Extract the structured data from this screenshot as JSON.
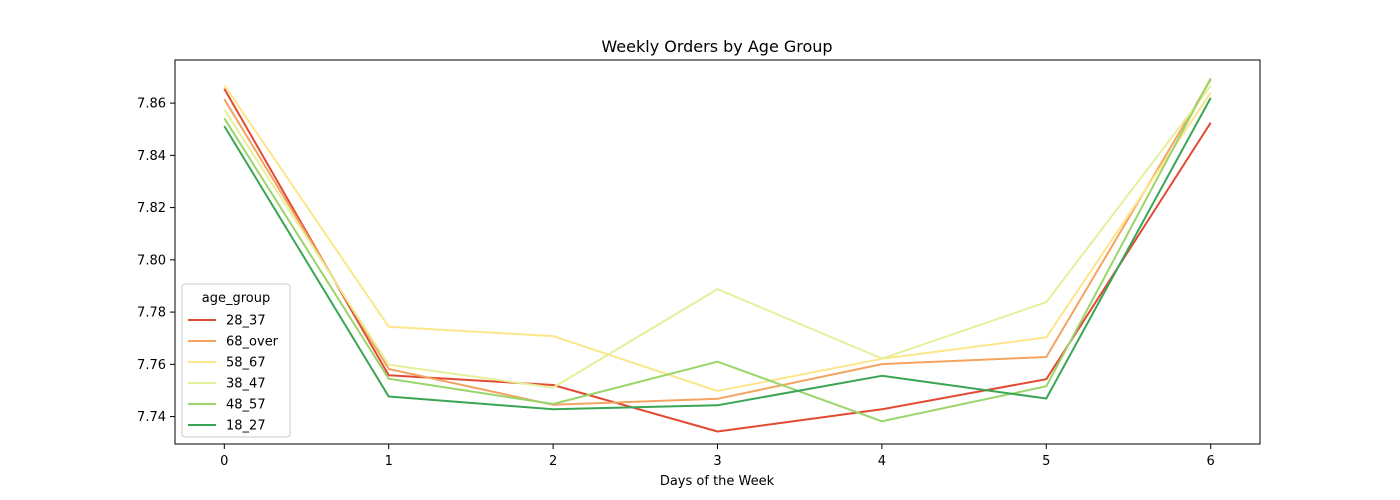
{
  "chart_data": {
    "type": "line",
    "title": "Weekly Orders by Age Group",
    "xlabel": "Days of the Week",
    "ylabel": "",
    "x": [
      0,
      1,
      2,
      3,
      4,
      5,
      6
    ],
    "x_ticks": [
      "0",
      "1",
      "2",
      "3",
      "4",
      "5",
      "6"
    ],
    "xlim": [
      -0.3,
      6.3
    ],
    "ylim": [
      7.7295,
      7.8765
    ],
    "y_ticks": [
      7.74,
      7.76,
      7.78,
      7.8,
      7.82,
      7.84,
      7.86
    ],
    "y_tick_labels": [
      "7.74",
      "7.76",
      "7.78",
      "7.80",
      "7.82",
      "7.84",
      "7.86"
    ],
    "grid": false,
    "legend": {
      "title": "age_group",
      "placement": "lower-left"
    },
    "series": [
      {
        "name": "28_37",
        "color": "#e34a33",
        "values": [
          7.8655,
          7.7558,
          7.7521,
          7.7343,
          7.7428,
          7.7543,
          7.8525
        ]
      },
      {
        "name": "68_over",
        "color": "#f4a460",
        "values": [
          7.8615,
          7.7582,
          7.7445,
          7.7468,
          7.7601,
          7.7628,
          7.869
        ]
      },
      {
        "name": "58_67",
        "color": "#fde68a",
        "values": [
          7.8668,
          7.7744,
          7.7708,
          7.7498,
          7.7621,
          7.7703,
          7.864
        ]
      },
      {
        "name": "38_47",
        "color": "#e6f09a",
        "values": [
          7.8575,
          7.7598,
          7.7511,
          7.7888,
          7.7622,
          7.7838,
          7.8665
        ]
      },
      {
        "name": "48_57",
        "color": "#9ad56a",
        "values": [
          7.8542,
          7.7545,
          7.7448,
          7.761,
          7.7382,
          7.7516,
          7.8695
        ]
      },
      {
        "name": "18_27",
        "color": "#3aa655",
        "values": [
          7.8512,
          7.7477,
          7.7428,
          7.7443,
          7.7556,
          7.7469,
          7.862
        ]
      }
    ]
  }
}
